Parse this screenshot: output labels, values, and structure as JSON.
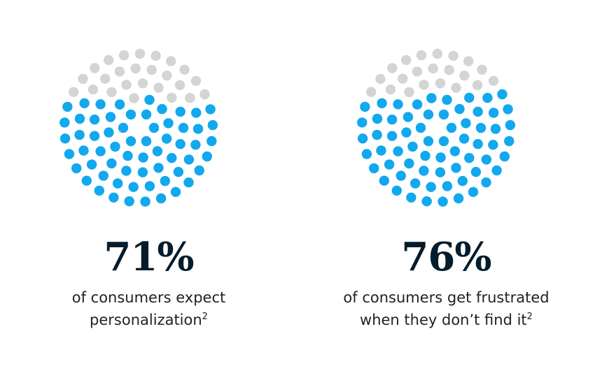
{
  "colors": {
    "filled": "#12a8ee",
    "empty": "#d4d4d4",
    "text_dark": "#051c2c",
    "text_body": "#222222"
  },
  "chart_data": [
    {
      "type": "pie",
      "style": "dot-circle",
      "value": 71,
      "unit": "%",
      "label": "71%",
      "caption_line1": "of consumers expect",
      "caption_line2": "personalization",
      "footnote": "2"
    },
    {
      "type": "pie",
      "style": "dot-circle",
      "value": 76,
      "unit": "%",
      "label": "76%",
      "caption_line1": "of consumers get frustrated",
      "caption_line2": "when they don’t find it",
      "footnote": "2"
    }
  ]
}
